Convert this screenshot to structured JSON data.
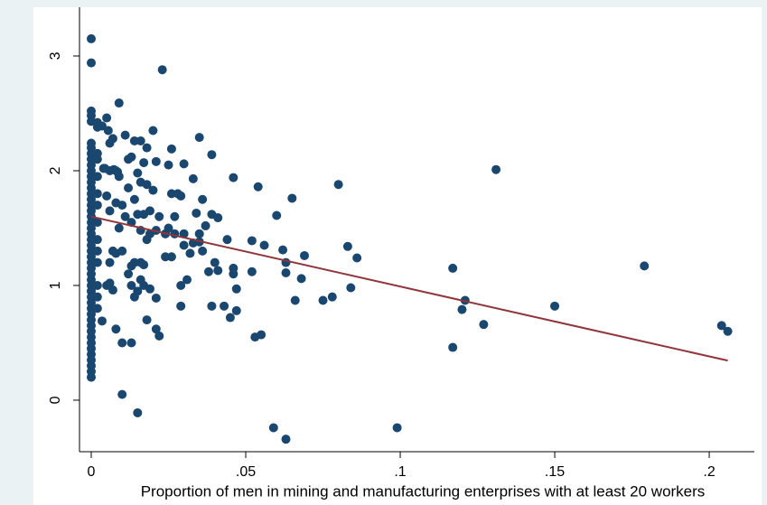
{
  "chart_data": {
    "type": "scatter",
    "xlabel": "Proportion of men in mining and manufacturing enterprises with at least 20 workers",
    "color": "#1a476f",
    "xlim": [
      -0.0038,
      0.2146
    ],
    "ylim": [
      -0.449,
      3.425
    ],
    "xticks": [
      0,
      {
        "value": 0.05,
        "label": ".05"
      },
      {
        "value": 0.1,
        "label": ".1"
      },
      {
        "value": 0.15,
        "label": ".15"
      },
      {
        "value": 0.2,
        "label": ".2"
      }
    ],
    "yticks": [
      0,
      1,
      2,
      3
    ],
    "x": [
      0,
      0,
      0,
      0,
      0,
      0,
      0,
      0,
      0,
      0,
      0,
      0,
      0,
      0,
      0,
      0,
      0,
      0,
      0,
      0,
      0,
      0,
      0,
      0,
      0,
      0,
      0,
      0,
      0,
      0,
      0,
      0,
      0,
      0,
      0,
      0,
      0,
      0,
      0,
      0,
      0,
      0,
      0,
      0,
      0,
      0,
      0,
      0.002,
      0.002,
      0.002,
      0.002,
      0.002,
      0.002,
      0.002,
      0.002,
      0.002,
      0.002,
      0.002,
      0.002,
      0.002,
      0.002,
      0.0035,
      0.005,
      0.0035,
      0.0055,
      0.006,
      0.0044,
      0.0073,
      0.0085,
      0.009,
      0.007,
      0.011,
      0.014,
      0.016,
      0.018,
      0.02,
      0.023,
      0.026,
      0.025,
      0.021,
      0.017,
      0.015,
      0.012,
      0.013,
      0.008,
      0.006,
      0.004,
      0.009,
      0.018,
      0.02,
      0.016,
      0.012,
      0.014,
      0.01,
      0.008,
      0.006,
      0.005,
      0.011,
      0.015,
      0.017,
      0.019,
      0.022,
      0.013,
      0.009,
      0.016,
      0.019,
      0.021,
      0.018,
      0.024,
      0.026,
      0.028,
      0.029,
      0.03,
      0.033,
      0.035,
      0.039,
      0.036,
      0.034,
      0.039,
      0.041,
      0.037,
      0.035,
      0.033,
      0.03,
      0.027,
      0.027,
      0.025,
      0.03,
      0.032,
      0.036,
      0.035,
      0.038,
      0.041,
      0.04,
      0.044,
      0.046,
      0.046,
      0.047,
      0.046,
      0.047,
      0.045,
      0.043,
      0.039,
      0.031,
      0.029,
      0.029,
      0.021,
      0.021,
      0.022,
      0.019,
      0.017,
      0.016,
      0.015,
      0.013,
      0.014,
      0.014,
      0.016,
      0.017,
      0.012,
      0.013,
      0.01,
      0.008,
      0.007,
      0.006,
      0.005,
      0.007,
      0.006,
      0.008,
      0.01,
      0.013,
      0.01,
      0.015,
      0.018,
      0.024,
      0.026,
      0.052,
      0.052,
      0.054,
      0.056,
      0.06,
      0.062,
      0.063,
      0.065,
      0.066,
      0.063,
      0.068,
      0.069,
      0.053,
      0.055,
      0.059,
      0.063,
      0.075,
      0.078,
      0.08,
      0.083,
      0.084,
      0.086,
      0.099,
      0.117,
      0.117,
      0.12,
      0.121,
      0.127,
      0.131,
      0.15,
      0.179,
      0.204,
      0.206
    ],
    "values": [
      3.15,
      2.94,
      2.52,
      2.48,
      2.43,
      2.24,
      2.2,
      2.15,
      2.1,
      2.05,
      2.0,
      1.95,
      1.9,
      1.85,
      1.8,
      1.75,
      1.7,
      1.65,
      1.6,
      1.55,
      1.5,
      1.45,
      1.4,
      1.35,
      1.3,
      1.25,
      1.2,
      1.15,
      1.1,
      1.05,
      1.0,
      0.95,
      0.9,
      0.85,
      0.8,
      0.75,
      0.7,
      0.65,
      0.6,
      0.55,
      0.5,
      0.45,
      0.4,
      0.35,
      0.3,
      0.25,
      0.2,
      2.42,
      2.38,
      2.15,
      2.1,
      1.95,
      1.8,
      1.7,
      1.55,
      1.4,
      1.3,
      1.2,
      1.0,
      0.9,
      0.8,
      0.69,
      2.46,
      2.39,
      2.35,
      2.24,
      2.02,
      2.01,
      1.99,
      2.59,
      2.28,
      2.31,
      2.26,
      2.26,
      2.2,
      2.35,
      2.88,
      2.19,
      2.05,
      2.08,
      2.07,
      1.98,
      2.1,
      2.12,
      2.0,
      2.0,
      2.02,
      1.95,
      1.88,
      1.83,
      1.9,
      1.85,
      1.75,
      1.7,
      1.72,
      1.65,
      1.78,
      1.6,
      1.62,
      1.62,
      1.65,
      1.6,
      1.55,
      1.5,
      1.48,
      1.45,
      1.48,
      1.4,
      1.45,
      1.8,
      1.8,
      1.78,
      2.06,
      1.93,
      2.29,
      2.14,
      1.75,
      1.63,
      1.62,
      1.59,
      1.52,
      1.45,
      1.37,
      1.45,
      1.6,
      1.45,
      1.5,
      1.35,
      1.28,
      1.3,
      1.38,
      1.12,
      1.13,
      1.2,
      1.4,
      1.15,
      1.1,
      0.97,
      1.94,
      0.78,
      0.72,
      0.82,
      0.82,
      1.05,
      1.0,
      0.82,
      0.89,
      0.62,
      0.56,
      0.97,
      1.0,
      1.05,
      0.95,
      1.0,
      0.9,
      1.2,
      1.2,
      1.18,
      1.1,
      1.17,
      1.3,
      1.28,
      1.3,
      1.2,
      1.0,
      0.96,
      1.02,
      0.62,
      0.5,
      0.5,
      0.05,
      -0.11,
      0.7,
      1.25,
      1.25,
      1.39,
      1.12,
      1.86,
      1.35,
      1.61,
      1.31,
      1.2,
      1.76,
      0.87,
      1.11,
      1.06,
      1.26,
      0.55,
      0.57,
      -0.24,
      -0.34,
      0.87,
      0.9,
      1.88,
      1.34,
      0.98,
      1.24,
      -0.24,
      1.15,
      0.46,
      0.79,
      0.87,
      0.66,
      2.01,
      0.82,
      1.17,
      0.65,
      0.6
    ],
    "fit_line": {
      "type": "line",
      "color": "#90353b",
      "x": [
        0,
        0.206
      ],
      "values": [
        1.6,
        0.345
      ]
    }
  }
}
